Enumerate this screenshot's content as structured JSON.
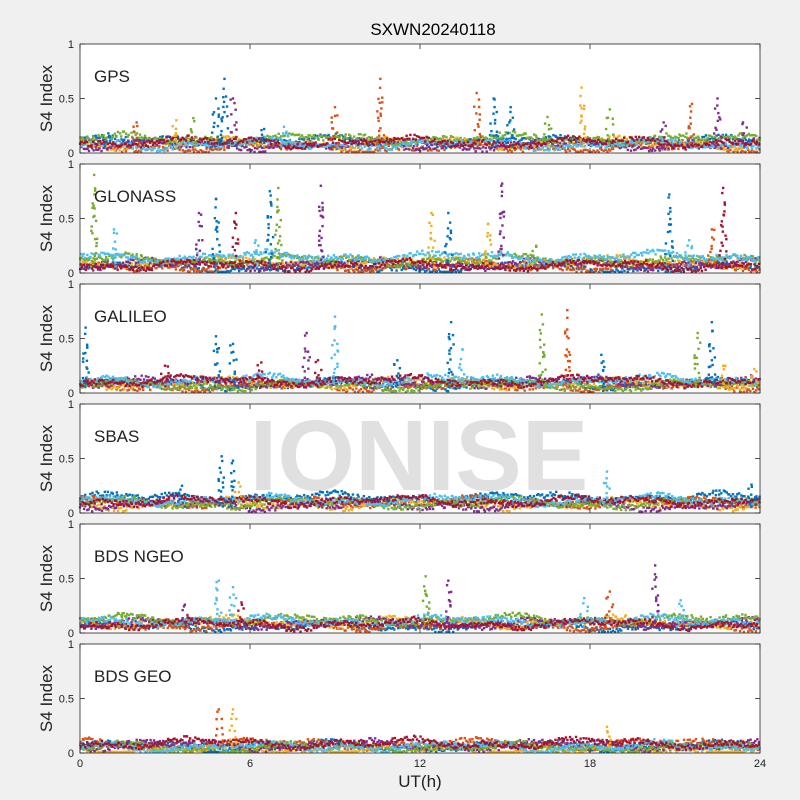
{
  "figure_title": "SXWN20240118",
  "watermark": "IONISE",
  "colors": {
    "background": "#f0f0f0",
    "axes_bg": "#ffffff",
    "axis": "#262626",
    "series": [
      "#0072BD",
      "#D95319",
      "#EDB120",
      "#7E2F8E",
      "#77AC30",
      "#4DBEEE",
      "#A2142F"
    ]
  },
  "chart_data": [
    {
      "type": "scatter",
      "panel_label": "GPS",
      "ylabel": "S4 Index",
      "xlabel": "",
      "xlim": [
        0,
        24
      ],
      "ylim": [
        0,
        1
      ],
      "yticks": [
        "0",
        "0.5",
        "1"
      ],
      "base": [
        0.11,
        0.05,
        0.09,
        0.07,
        0.13,
        0.08,
        0.1
      ],
      "spikes": [
        {
          "t": 1.0,
          "s": 0,
          "h": 0.18
        },
        {
          "t": 2.0,
          "s": 1,
          "h": 0.28
        },
        {
          "t": 3.4,
          "s": 2,
          "h": 0.3
        },
        {
          "t": 4.0,
          "s": 4,
          "h": 0.32
        },
        {
          "t": 4.8,
          "s": 0,
          "h": 0.5
        },
        {
          "t": 5.1,
          "s": 0,
          "h": 0.68
        },
        {
          "t": 5.4,
          "s": 3,
          "h": 0.5
        },
        {
          "t": 6.5,
          "s": 0,
          "h": 0.22
        },
        {
          "t": 7.2,
          "s": 5,
          "h": 0.24
        },
        {
          "t": 9.0,
          "s": 1,
          "h": 0.42
        },
        {
          "t": 10.6,
          "s": 1,
          "h": 0.68
        },
        {
          "t": 14.0,
          "s": 1,
          "h": 0.55
        },
        {
          "t": 14.6,
          "s": 0,
          "h": 0.5
        },
        {
          "t": 15.2,
          "s": 0,
          "h": 0.42
        },
        {
          "t": 16.5,
          "s": 4,
          "h": 0.33
        },
        {
          "t": 17.7,
          "s": 2,
          "h": 0.6
        },
        {
          "t": 18.7,
          "s": 4,
          "h": 0.4
        },
        {
          "t": 20.6,
          "s": 3,
          "h": 0.28
        },
        {
          "t": 21.6,
          "s": 1,
          "h": 0.45
        },
        {
          "t": 22.5,
          "s": 3,
          "h": 0.5
        },
        {
          "t": 23.4,
          "s": 3,
          "h": 0.28
        }
      ]
    },
    {
      "type": "scatter",
      "panel_label": "GLONASS",
      "ylabel": "S4 Index",
      "xlabel": "",
      "xlim": [
        0,
        24
      ],
      "ylim": [
        0,
        1
      ],
      "yticks": [
        "0",
        "0.5",
        "1"
      ],
      "base": [
        0.05,
        0.06,
        0.1,
        0.08,
        0.12,
        0.15,
        0.07
      ],
      "spikes": [
        {
          "t": 0.5,
          "s": 4,
          "h": 0.9
        },
        {
          "t": 1.2,
          "s": 5,
          "h": 0.4
        },
        {
          "t": 4.2,
          "s": 3,
          "h": 0.55
        },
        {
          "t": 4.8,
          "s": 0,
          "h": 0.68
        },
        {
          "t": 5.5,
          "s": 6,
          "h": 0.55
        },
        {
          "t": 6.2,
          "s": 5,
          "h": 0.3
        },
        {
          "t": 6.7,
          "s": 0,
          "h": 0.75
        },
        {
          "t": 7.0,
          "s": 4,
          "h": 0.78
        },
        {
          "t": 8.5,
          "s": 3,
          "h": 0.8
        },
        {
          "t": 12.4,
          "s": 2,
          "h": 0.55
        },
        {
          "t": 13.0,
          "s": 0,
          "h": 0.55
        },
        {
          "t": 14.4,
          "s": 2,
          "h": 0.45
        },
        {
          "t": 14.9,
          "s": 3,
          "h": 0.82
        },
        {
          "t": 16.1,
          "s": 4,
          "h": 0.25
        },
        {
          "t": 20.8,
          "s": 0,
          "h": 0.72
        },
        {
          "t": 21.5,
          "s": 5,
          "h": 0.3
        },
        {
          "t": 22.3,
          "s": 1,
          "h": 0.4
        },
        {
          "t": 22.7,
          "s": 6,
          "h": 0.78
        }
      ]
    },
    {
      "type": "scatter",
      "panel_label": "GALILEO",
      "ylabel": "S4 Index",
      "xlabel": "",
      "xlim": [
        0,
        24
      ],
      "ylim": [
        0,
        1
      ],
      "yticks": [
        "0",
        "0.5",
        "1"
      ],
      "base": [
        0.08,
        0.06,
        0.09,
        0.1,
        0.07,
        0.12,
        0.11
      ],
      "spikes": [
        {
          "t": 0.2,
          "s": 0,
          "h": 0.6
        },
        {
          "t": 3.0,
          "s": 6,
          "h": 0.25
        },
        {
          "t": 4.8,
          "s": 0,
          "h": 0.52
        },
        {
          "t": 5.4,
          "s": 0,
          "h": 0.45
        },
        {
          "t": 6.4,
          "s": 6,
          "h": 0.28
        },
        {
          "t": 8.0,
          "s": 3,
          "h": 0.55
        },
        {
          "t": 8.4,
          "s": 6,
          "h": 0.3
        },
        {
          "t": 9.0,
          "s": 5,
          "h": 0.7
        },
        {
          "t": 11.2,
          "s": 0,
          "h": 0.3
        },
        {
          "t": 13.1,
          "s": 0,
          "h": 0.65
        },
        {
          "t": 13.5,
          "s": 5,
          "h": 0.4
        },
        {
          "t": 16.3,
          "s": 4,
          "h": 0.72
        },
        {
          "t": 17.2,
          "s": 1,
          "h": 0.76
        },
        {
          "t": 18.4,
          "s": 0,
          "h": 0.35
        },
        {
          "t": 21.8,
          "s": 4,
          "h": 0.55
        },
        {
          "t": 22.3,
          "s": 0,
          "h": 0.65
        },
        {
          "t": 22.7,
          "s": 2,
          "h": 0.25
        },
        {
          "t": 23.8,
          "s": 2,
          "h": 0.22
        }
      ]
    },
    {
      "type": "scatter",
      "panel_label": "SBAS",
      "ylabel": "S4 Index",
      "xlabel": "",
      "xlim": [
        0,
        24
      ],
      "ylim": [
        0,
        1
      ],
      "yticks": [
        "0",
        "0.5",
        "1"
      ],
      "base": [
        0.14,
        0.1,
        0.08,
        0.07,
        0.09,
        0.12,
        0.11
      ],
      "spikes": [
        {
          "t": 3.6,
          "s": 0,
          "h": 0.25
        },
        {
          "t": 5.0,
          "s": 0,
          "h": 0.52
        },
        {
          "t": 5.4,
          "s": 0,
          "h": 0.48
        },
        {
          "t": 5.6,
          "s": 2,
          "h": 0.28
        },
        {
          "t": 18.6,
          "s": 5,
          "h": 0.38
        },
        {
          "t": 23.7,
          "s": 0,
          "h": 0.26
        }
      ]
    },
    {
      "type": "scatter",
      "panel_label": "BDS NGEO",
      "ylabel": "S4 Index",
      "xlabel": "",
      "xlim": [
        0,
        24
      ],
      "ylim": [
        0,
        1
      ],
      "yticks": [
        "0",
        "0.5",
        "1"
      ],
      "base": [
        0.06,
        0.07,
        0.1,
        0.09,
        0.12,
        0.11,
        0.08
      ],
      "spikes": [
        {
          "t": 1.5,
          "s": 4,
          "h": 0.18
        },
        {
          "t": 3.7,
          "s": 3,
          "h": 0.26
        },
        {
          "t": 4.9,
          "s": 5,
          "h": 0.48
        },
        {
          "t": 5.4,
          "s": 5,
          "h": 0.42
        },
        {
          "t": 5.7,
          "s": 6,
          "h": 0.28
        },
        {
          "t": 12.2,
          "s": 4,
          "h": 0.52
        },
        {
          "t": 13.0,
          "s": 3,
          "h": 0.48
        },
        {
          "t": 17.8,
          "s": 5,
          "h": 0.32
        },
        {
          "t": 18.7,
          "s": 1,
          "h": 0.38
        },
        {
          "t": 20.3,
          "s": 3,
          "h": 0.62
        },
        {
          "t": 21.2,
          "s": 5,
          "h": 0.3
        }
      ]
    },
    {
      "type": "scatter",
      "panel_label": "BDS GEO",
      "ylabel": "S4 Index",
      "xlabel": "UT(h)",
      "xlim": [
        0,
        24
      ],
      "ylim": [
        0,
        1
      ],
      "yticks": [
        "0",
        "0.5",
        "1"
      ],
      "xticks": [
        "0",
        "6",
        "12",
        "18",
        "24"
      ],
      "base": [
        0.06,
        0.08,
        0.03,
        0.07,
        0.05,
        0.06,
        0.09
      ],
      "spikes": [
        {
          "t": 4.9,
          "s": 1,
          "h": 0.4
        },
        {
          "t": 5.4,
          "s": 2,
          "h": 0.4
        },
        {
          "t": 18.6,
          "s": 2,
          "h": 0.24
        }
      ]
    }
  ]
}
